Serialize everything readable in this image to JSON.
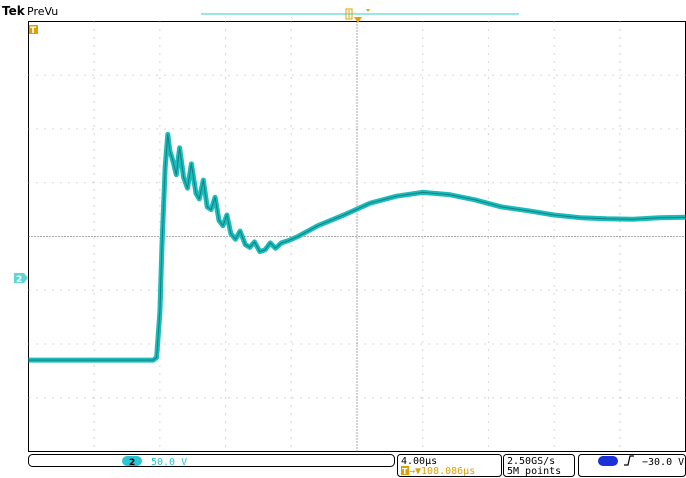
{
  "header": {
    "brand": "Tek",
    "mode": "PreVu"
  },
  "markers": {
    "trigger_marker": "T",
    "channel_marker": "2"
  },
  "status_bar": {
    "channel_badge": "2",
    "channel_scale": "50.0 V",
    "time_per_div": "4.00µs",
    "trigger_position_icon": "T",
    "trigger_delay": "→▼108.086µs",
    "sample_rate": "2.50GS/s",
    "record_length": "5M points",
    "trigger_source_badge": "2",
    "trigger_slope_icon": "rising-edge-icon",
    "trigger_level": "−30.0 V"
  },
  "colors": {
    "trace": "#1bbcbc",
    "trace_dark": "#137f7f",
    "trigger_orange": "#e0a000",
    "record_bar": "#5cd6d6",
    "channel_badge": "#29c6d6",
    "source_badge": "#1a32d8"
  },
  "chart_data": {
    "type": "line",
    "title": "",
    "xlabel": "",
    "ylabel": "",
    "x_divisions": 10,
    "y_divisions": 8,
    "series": [
      {
        "points": [
          [
            0.0,
            -2.3
          ],
          [
            1.9,
            -2.3
          ],
          [
            1.95,
            -2.25
          ],
          [
            2.0,
            -1.4
          ],
          [
            2.03,
            -0.2
          ],
          [
            2.08,
            1.3
          ],
          [
            2.12,
            1.9
          ],
          [
            2.15,
            1.6
          ],
          [
            2.2,
            1.4
          ],
          [
            2.25,
            1.15
          ],
          [
            2.3,
            1.65
          ],
          [
            2.36,
            1.1
          ],
          [
            2.42,
            0.9
          ],
          [
            2.48,
            1.35
          ],
          [
            2.55,
            0.8
          ],
          [
            2.6,
            0.7
          ],
          [
            2.66,
            1.05
          ],
          [
            2.72,
            0.55
          ],
          [
            2.78,
            0.5
          ],
          [
            2.84,
            0.73
          ],
          [
            2.9,
            0.3
          ],
          [
            2.96,
            0.2
          ],
          [
            3.02,
            0.4
          ],
          [
            3.08,
            0.05
          ],
          [
            3.15,
            -0.05
          ],
          [
            3.22,
            0.1
          ],
          [
            3.3,
            -0.15
          ],
          [
            3.37,
            -0.2
          ],
          [
            3.44,
            -0.1
          ],
          [
            3.52,
            -0.28
          ],
          [
            3.6,
            -0.25
          ],
          [
            3.68,
            -0.12
          ],
          [
            3.76,
            -0.22
          ],
          [
            3.85,
            -0.12
          ],
          [
            3.95,
            -0.08
          ],
          [
            4.1,
            0.0
          ],
          [
            4.4,
            0.2
          ],
          [
            4.8,
            0.4
          ],
          [
            5.2,
            0.62
          ],
          [
            5.6,
            0.75
          ],
          [
            6.0,
            0.82
          ],
          [
            6.4,
            0.78
          ],
          [
            6.8,
            0.68
          ],
          [
            7.2,
            0.55
          ],
          [
            7.6,
            0.48
          ],
          [
            8.0,
            0.4
          ],
          [
            8.4,
            0.35
          ],
          [
            8.8,
            0.33
          ],
          [
            9.2,
            0.32
          ],
          [
            9.6,
            0.35
          ],
          [
            10.0,
            0.36
          ]
        ]
      }
    ]
  }
}
